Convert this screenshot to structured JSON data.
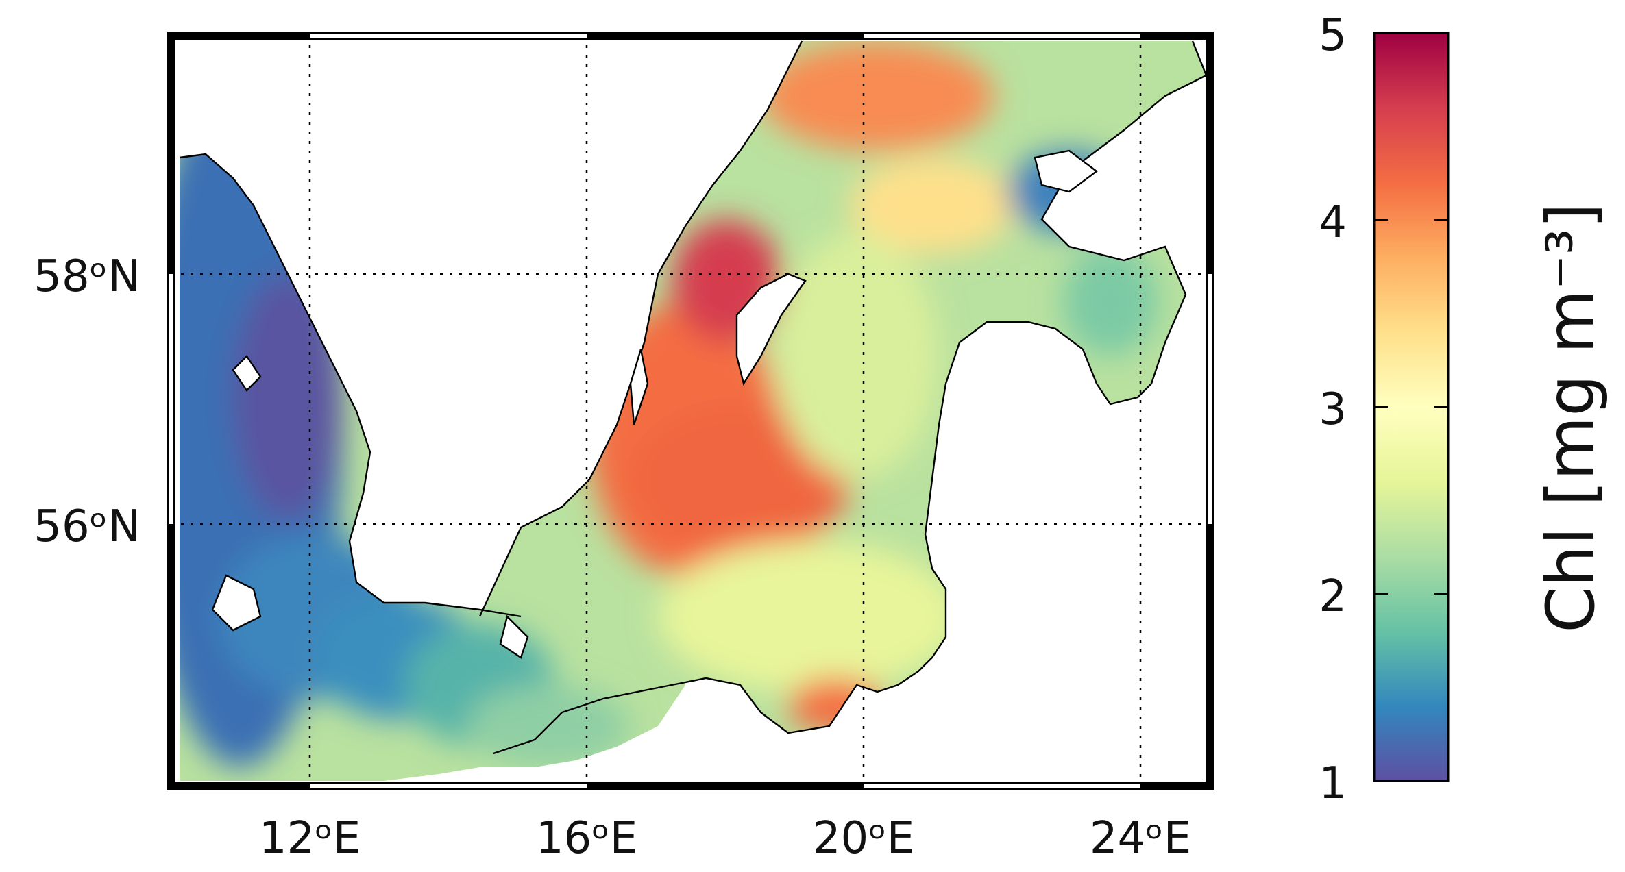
{
  "map": {
    "lon_range": [
      10,
      25
    ],
    "lat_range": [
      54,
      60
    ],
    "lon_ticks": [
      {
        "value": 12,
        "label": "12ᵒE"
      },
      {
        "value": 16,
        "label": "16ᵒE"
      },
      {
        "value": 20,
        "label": "20ᵒE"
      },
      {
        "value": 24,
        "label": "24ᵒE"
      }
    ],
    "lat_ticks": [
      {
        "value": 58,
        "label": "58ᵒN"
      },
      {
        "value": 56,
        "label": "56ᵒN"
      }
    ],
    "gridlines": "dotted",
    "land_color": "#ffffff",
    "coastline_color": "#000000"
  },
  "colorbar": {
    "label": "Chl [mg m⁻³]",
    "range": [
      1,
      5
    ],
    "ticks": [
      "1",
      "2",
      "3",
      "4",
      "5"
    ],
    "colormap": "Spectral_r",
    "stops": [
      "#5e4fa2",
      "#3288bd",
      "#66c2a5",
      "#abdda4",
      "#e6f598",
      "#ffffbf",
      "#fee08b",
      "#fdae61",
      "#f46d43",
      "#d53e4f",
      "#9e0142"
    ]
  }
}
